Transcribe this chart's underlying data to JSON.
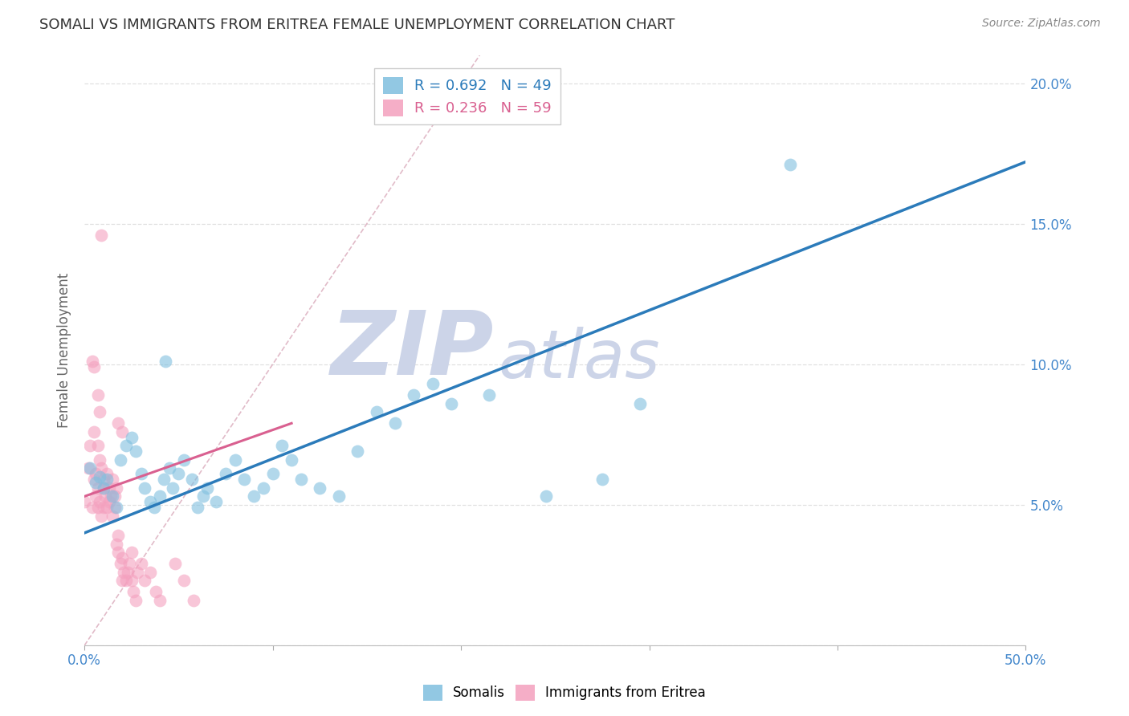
{
  "title": "SOMALI VS IMMIGRANTS FROM ERITREA FEMALE UNEMPLOYMENT CORRELATION CHART",
  "source": "Source: ZipAtlas.com",
  "ylabel": "Female Unemployment",
  "xlim": [
    0.0,
    0.5
  ],
  "ylim": [
    0.0,
    0.21
  ],
  "xticks": [
    0.0,
    0.1,
    0.2,
    0.3,
    0.4,
    0.5
  ],
  "xticklabels_show": [
    "0.0%",
    "",
    "",
    "",
    "",
    "50.0%"
  ],
  "yticks": [
    0.0,
    0.05,
    0.1,
    0.15,
    0.2
  ],
  "yticklabels_right": [
    "",
    "5.0%",
    "10.0%",
    "15.0%",
    "20.0%"
  ],
  "somali_color": "#7fbfdf",
  "eritrea_color": "#f4a0be",
  "somali_line_color": "#2b7bba",
  "eritrea_line_color": "#d96090",
  "diag_line_color": "#daaabb",
  "watermark_zip": "ZIP",
  "watermark_atlas": "atlas",
  "watermark_color": "#ccd4e8",
  "background_color": "#ffffff",
  "grid_color": "#e0e0e0",
  "title_color": "#333333",
  "axis_color": "#4488cc",
  "legend_label_blue": "R = 0.692   N = 49",
  "legend_label_pink": "R = 0.236   N = 59",
  "legend_text_blue": "#2b7bba",
  "legend_text_pink": "#d96090",
  "somali_scatter": [
    [
      0.003,
      0.063
    ],
    [
      0.006,
      0.058
    ],
    [
      0.008,
      0.06
    ],
    [
      0.01,
      0.056
    ],
    [
      0.012,
      0.059
    ],
    [
      0.015,
      0.053
    ],
    [
      0.017,
      0.049
    ],
    [
      0.019,
      0.066
    ],
    [
      0.022,
      0.071
    ],
    [
      0.025,
      0.074
    ],
    [
      0.027,
      0.069
    ],
    [
      0.03,
      0.061
    ],
    [
      0.032,
      0.056
    ],
    [
      0.035,
      0.051
    ],
    [
      0.037,
      0.049
    ],
    [
      0.04,
      0.053
    ],
    [
      0.042,
      0.059
    ],
    [
      0.045,
      0.063
    ],
    [
      0.047,
      0.056
    ],
    [
      0.05,
      0.061
    ],
    [
      0.053,
      0.066
    ],
    [
      0.057,
      0.059
    ],
    [
      0.06,
      0.049
    ],
    [
      0.063,
      0.053
    ],
    [
      0.065,
      0.056
    ],
    [
      0.07,
      0.051
    ],
    [
      0.075,
      0.061
    ],
    [
      0.08,
      0.066
    ],
    [
      0.085,
      0.059
    ],
    [
      0.09,
      0.053
    ],
    [
      0.095,
      0.056
    ],
    [
      0.1,
      0.061
    ],
    [
      0.105,
      0.071
    ],
    [
      0.11,
      0.066
    ],
    [
      0.115,
      0.059
    ],
    [
      0.125,
      0.056
    ],
    [
      0.135,
      0.053
    ],
    [
      0.145,
      0.069
    ],
    [
      0.155,
      0.083
    ],
    [
      0.165,
      0.079
    ],
    [
      0.175,
      0.089
    ],
    [
      0.185,
      0.093
    ],
    [
      0.195,
      0.086
    ],
    [
      0.215,
      0.089
    ],
    [
      0.245,
      0.053
    ],
    [
      0.275,
      0.059
    ],
    [
      0.295,
      0.086
    ],
    [
      0.375,
      0.171
    ],
    [
      0.043,
      0.101
    ]
  ],
  "eritrea_scatter": [
    [
      0.0,
      0.051
    ],
    [
      0.002,
      0.063
    ],
    [
      0.003,
      0.071
    ],
    [
      0.004,
      0.049
    ],
    [
      0.004,
      0.101
    ],
    [
      0.005,
      0.099
    ],
    [
      0.005,
      0.059
    ],
    [
      0.006,
      0.061
    ],
    [
      0.006,
      0.053
    ],
    [
      0.007,
      0.056
    ],
    [
      0.007,
      0.049
    ],
    [
      0.008,
      0.051
    ],
    [
      0.008,
      0.066
    ],
    [
      0.009,
      0.063
    ],
    [
      0.009,
      0.046
    ],
    [
      0.01,
      0.049
    ],
    [
      0.01,
      0.059
    ],
    [
      0.01,
      0.056
    ],
    [
      0.011,
      0.053
    ],
    [
      0.012,
      0.061
    ],
    [
      0.012,
      0.049
    ],
    [
      0.013,
      0.051
    ],
    [
      0.013,
      0.056
    ],
    [
      0.014,
      0.053
    ],
    [
      0.015,
      0.059
    ],
    [
      0.015,
      0.046
    ],
    [
      0.016,
      0.049
    ],
    [
      0.016,
      0.053
    ],
    [
      0.017,
      0.056
    ],
    [
      0.017,
      0.036
    ],
    [
      0.018,
      0.033
    ],
    [
      0.018,
      0.039
    ],
    [
      0.019,
      0.029
    ],
    [
      0.02,
      0.031
    ],
    [
      0.02,
      0.023
    ],
    [
      0.021,
      0.026
    ],
    [
      0.022,
      0.023
    ],
    [
      0.023,
      0.026
    ],
    [
      0.024,
      0.029
    ],
    [
      0.025,
      0.033
    ],
    [
      0.025,
      0.023
    ],
    [
      0.026,
      0.019
    ],
    [
      0.027,
      0.016
    ],
    [
      0.028,
      0.026
    ],
    [
      0.03,
      0.029
    ],
    [
      0.032,
      0.023
    ],
    [
      0.035,
      0.026
    ],
    [
      0.038,
      0.019
    ],
    [
      0.04,
      0.016
    ],
    [
      0.048,
      0.029
    ],
    [
      0.053,
      0.023
    ],
    [
      0.058,
      0.016
    ],
    [
      0.009,
      0.146
    ],
    [
      0.018,
      0.079
    ],
    [
      0.02,
      0.076
    ],
    [
      0.007,
      0.089
    ],
    [
      0.008,
      0.083
    ],
    [
      0.005,
      0.076
    ],
    [
      0.007,
      0.071
    ]
  ],
  "somali_reg_line": [
    [
      0.0,
      0.04
    ],
    [
      0.5,
      0.172
    ]
  ],
  "eritrea_reg_line": [
    [
      0.0,
      0.053
    ],
    [
      0.11,
      0.079
    ]
  ],
  "diag_line": [
    [
      0.0,
      0.0
    ],
    [
      0.21,
      0.21
    ]
  ]
}
